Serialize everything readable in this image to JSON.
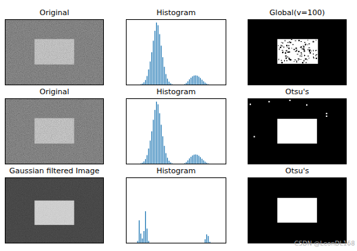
{
  "chart_data": [
    {
      "type": "image",
      "title": "Original",
      "colors": [
        "#3c3c3c",
        "#c4c4c4"
      ],
      "tick_labels": false
    },
    {
      "type": "histogram",
      "title": "Histogram",
      "color": "#1f77b4",
      "tick_labels": false,
      "xlim": [
        0,
        256
      ],
      "ylim": [
        0,
        2000
      ],
      "bins": [
        0,
        4,
        8,
        12,
        16,
        20,
        24,
        28,
        32,
        36,
        40,
        44,
        48,
        52,
        56,
        60,
        64,
        68,
        72,
        76,
        80,
        84,
        88,
        92,
        96,
        100,
        104,
        108,
        112,
        116,
        120,
        124,
        128,
        132,
        136,
        140,
        144,
        148,
        152,
        156,
        160,
        164,
        168,
        172,
        176,
        180,
        184,
        188,
        192,
        196,
        200,
        204,
        208,
        212,
        216,
        220,
        224,
        228,
        232,
        236,
        240,
        244,
        248,
        252,
        256
      ],
      "values": [
        0,
        0,
        0,
        0,
        0,
        5,
        8,
        12,
        20,
        30,
        50,
        90,
        160,
        280,
        480,
        720,
        1000,
        1350,
        1650,
        1900,
        1820,
        1550,
        1200,
        850,
        560,
        340,
        200,
        110,
        60,
        30,
        15,
        8,
        5,
        3,
        2,
        5,
        15,
        35,
        70,
        120,
        180,
        230,
        270,
        295,
        300,
        290,
        260,
        220,
        170,
        120,
        80,
        50,
        30,
        18,
        10,
        6,
        4,
        2,
        1,
        0,
        0,
        0,
        0,
        0
      ]
    },
    {
      "type": "image",
      "title": "Global(v=100)",
      "colors": [
        "#000000",
        "#ffffff"
      ],
      "tick_labels": false
    },
    {
      "type": "image",
      "title": "Original",
      "colors": [
        "#3c3c3c",
        "#c4c4c4"
      ],
      "tick_labels": false
    },
    {
      "type": "histogram",
      "title": "Histogram",
      "color": "#1f77b4",
      "tick_labels": false,
      "xlim": [
        0,
        256
      ],
      "ylim": [
        0,
        2000
      ],
      "bins": [
        0,
        4,
        8,
        12,
        16,
        20,
        24,
        28,
        32,
        36,
        40,
        44,
        48,
        52,
        56,
        60,
        64,
        68,
        72,
        76,
        80,
        84,
        88,
        92,
        96,
        100,
        104,
        108,
        112,
        116,
        120,
        124,
        128,
        132,
        136,
        140,
        144,
        148,
        152,
        156,
        160,
        164,
        168,
        172,
        176,
        180,
        184,
        188,
        192,
        196,
        200,
        204,
        208,
        212,
        216,
        220,
        224,
        228,
        232,
        236,
        240,
        244,
        248,
        252,
        256
      ],
      "values": [
        0,
        0,
        0,
        0,
        0,
        5,
        8,
        12,
        20,
        30,
        50,
        90,
        160,
        280,
        480,
        720,
        1000,
        1350,
        1650,
        1900,
        1820,
        1550,
        1200,
        850,
        560,
        340,
        200,
        110,
        60,
        30,
        15,
        8,
        5,
        3,
        2,
        5,
        15,
        35,
        70,
        120,
        180,
        230,
        270,
        295,
        300,
        290,
        260,
        220,
        170,
        120,
        80,
        50,
        30,
        18,
        10,
        6,
        4,
        2,
        1,
        0,
        0,
        0,
        0,
        0
      ]
    },
    {
      "type": "image",
      "title": "Otsu's",
      "colors": [
        "#000000",
        "#ffffff"
      ],
      "tick_labels": false
    },
    {
      "type": "image",
      "title": "Gaussian filtered Image",
      "colors": [
        "#222222",
        "#d6d6d6"
      ],
      "tick_labels": false
    },
    {
      "type": "histogram",
      "title": "Histogram",
      "color": "#1f77b4",
      "tick_labels": false,
      "xlim": [
        0,
        256
      ],
      "ylim": [
        0,
        8000
      ],
      "bins": [
        0,
        4,
        8,
        12,
        16,
        20,
        24,
        28,
        32,
        36,
        40,
        44,
        48,
        52,
        56,
        60,
        64,
        68,
        72,
        76,
        80,
        84,
        88,
        92,
        96,
        100,
        104,
        108,
        112,
        116,
        120,
        124,
        128,
        132,
        136,
        140,
        144,
        148,
        152,
        156,
        160,
        164,
        168,
        172,
        176,
        180,
        184,
        188,
        192,
        196,
        200,
        204,
        208,
        212,
        216,
        220,
        224,
        228,
        232,
        236,
        240,
        244,
        248,
        252,
        256
      ],
      "values": [
        0,
        0,
        0,
        0,
        0,
        0,
        0,
        300,
        2800,
        1200,
        600,
        1500,
        3900,
        1800,
        300,
        0,
        0,
        0,
        0,
        0,
        0,
        0,
        0,
        0,
        0,
        0,
        0,
        0,
        0,
        0,
        0,
        0,
        0,
        0,
        0,
        0,
        0,
        0,
        0,
        0,
        0,
        0,
        0,
        0,
        0,
        0,
        0,
        0,
        0,
        0,
        500,
        1100,
        900,
        200,
        0,
        0,
        0,
        0,
        0,
        0,
        0,
        0,
        0,
        0
      ]
    },
    {
      "type": "image",
      "title": "Otsu's",
      "colors": [
        "#000000",
        "#ffffff"
      ],
      "tick_labels": false
    }
  ],
  "watermark": "CSDN @LeonDL168"
}
